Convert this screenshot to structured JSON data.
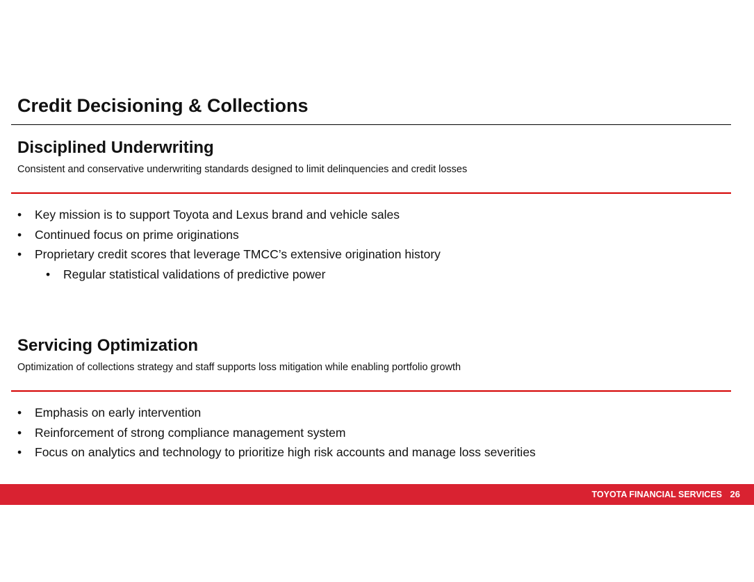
{
  "title": "Credit Decisioning & Collections",
  "sections": [
    {
      "heading": "Disciplined Underwriting",
      "subtitle": "Consistent and conservative underwriting standards designed to limit delinquencies and credit losses",
      "bullets": [
        "Key mission is to support Toyota and Lexus brand and vehicle sales",
        "Continued focus on prime originations",
        "Proprietary credit scores that leverage TMCC’s extensive origination history"
      ],
      "sub_bullets": [
        "Regular statistical validations of predictive power"
      ]
    },
    {
      "heading": "Servicing Optimization",
      "subtitle": "Optimization of collections strategy and staff supports loss mitigation while enabling portfolio growth",
      "bullets": [
        "Emphasis on early intervention",
        "Reinforcement of strong compliance management system",
        "Focus on analytics and technology to prioritize high risk accounts and manage loss severities"
      ]
    }
  ],
  "footer": {
    "brand": "TOYOTA FINANCIAL SERVICES",
    "page": "26",
    "bar_color": "#d92231"
  },
  "bullet_glyph": "•"
}
